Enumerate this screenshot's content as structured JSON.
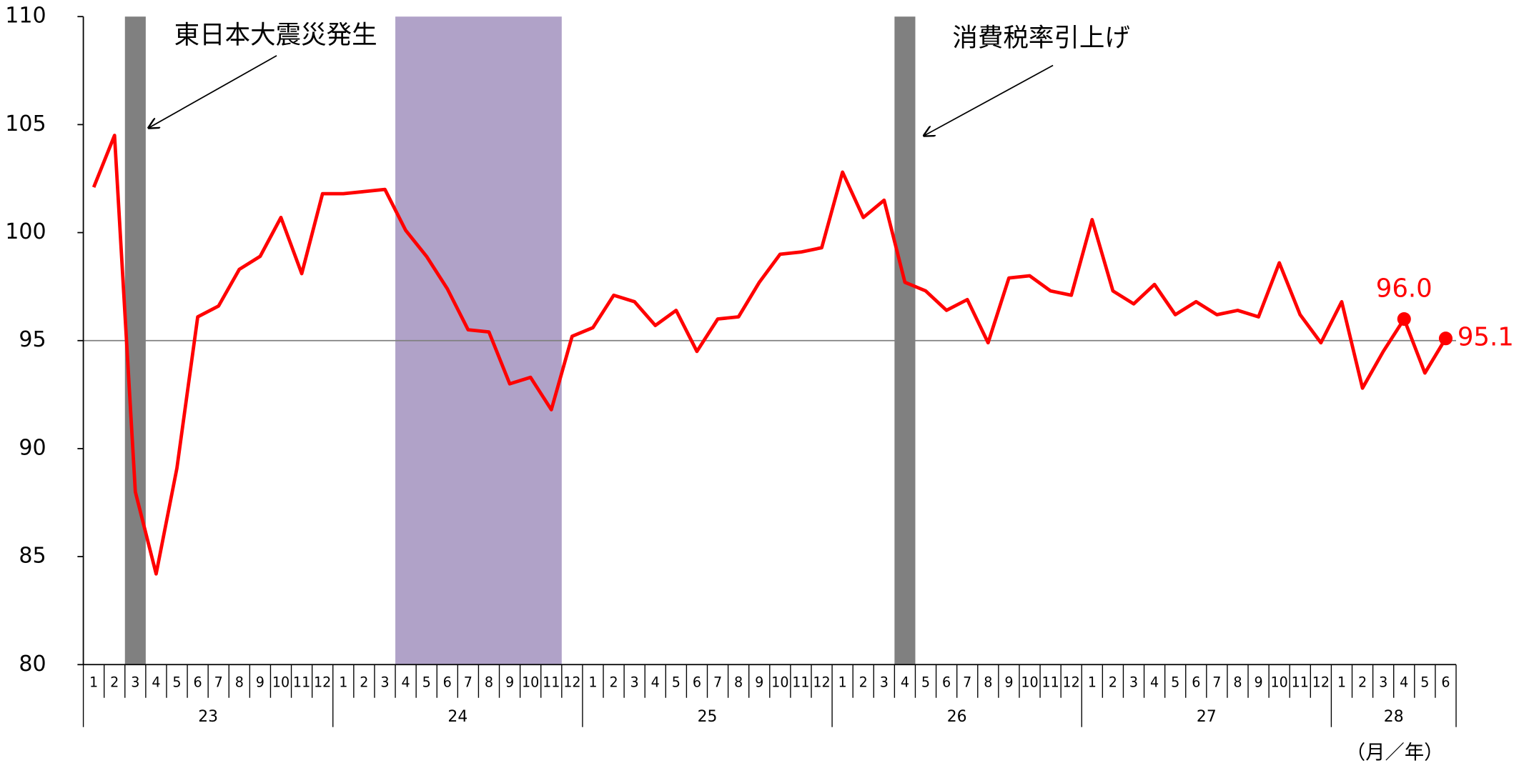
{
  "chart_data": {
    "type": "line",
    "categories": [
      "1",
      "2",
      "3",
      "4",
      "5",
      "6",
      "7",
      "8",
      "9",
      "10",
      "11",
      "12",
      "1",
      "2",
      "3",
      "4",
      "5",
      "6",
      "7",
      "8",
      "9",
      "10",
      "11",
      "12",
      "1",
      "2",
      "3",
      "4",
      "5",
      "6",
      "7",
      "8",
      "9",
      "10",
      "11",
      "12",
      "1",
      "2",
      "3",
      "4",
      "5",
      "6",
      "7",
      "8",
      "9",
      "10",
      "11",
      "12",
      "1",
      "2",
      "3",
      "4",
      "5",
      "6",
      "7",
      "8",
      "9",
      "10",
      "11",
      "12",
      "1",
      "2",
      "3",
      "4",
      "5",
      "6"
    ],
    "years": [
      "23",
      "24",
      "25",
      "26",
      "27",
      "28"
    ],
    "x_label": "（月／年）",
    "series": [
      {
        "color": "#ff0000",
        "values": [
          102.1,
          104.5,
          88.0,
          84.2,
          89.1,
          96.1,
          96.6,
          98.3,
          98.9,
          100.7,
          98.1,
          101.8,
          101.8,
          101.9,
          102.0,
          100.1,
          98.9,
          97.4,
          95.5,
          95.4,
          93.0,
          93.3,
          91.8,
          95.2,
          95.6,
          97.1,
          96.8,
          95.7,
          96.4,
          94.5,
          96.0,
          96.1,
          97.7,
          99.0,
          99.1,
          99.3,
          102.8,
          100.7,
          101.5,
          97.7,
          97.3,
          96.4,
          96.9,
          94.9,
          97.9,
          98.0,
          97.3,
          97.1,
          100.6,
          97.3,
          96.7,
          97.6,
          96.2,
          96.8,
          96.2,
          96.4,
          96.1,
          98.6,
          96.2,
          94.9,
          96.8,
          92.8,
          94.5,
          96.0,
          93.5,
          95.1
        ],
        "value_labels": [
          null,
          null,
          null,
          null,
          null,
          null,
          null,
          null,
          null,
          null,
          null,
          null,
          null,
          null,
          null,
          null,
          null,
          null,
          null,
          null,
          null,
          null,
          null,
          null,
          null,
          null,
          null,
          null,
          null,
          null,
          null,
          null,
          null,
          null,
          null,
          null,
          null,
          null,
          null,
          null,
          null,
          null,
          null,
          null,
          null,
          null,
          null,
          null,
          null,
          null,
          null,
          null,
          null,
          null,
          null,
          null,
          null,
          null,
          null,
          null,
          null,
          null,
          null,
          "96.0",
          null,
          "95.1"
        ]
      }
    ],
    "ylim": [
      80,
      110
    ],
    "yticks": [
      80,
      85,
      90,
      95,
      100,
      105,
      110
    ],
    "reference_line": 95,
    "shaded": [
      {
        "start_index": 2,
        "end_index": 2,
        "color": "#808080"
      },
      {
        "start_index": 15,
        "end_index": 22,
        "color": "#b0a2c8"
      },
      {
        "start_index": 39,
        "end_index": 39,
        "color": "#808080"
      }
    ],
    "annotations": [
      {
        "text": "東日本大震災発生"
      },
      {
        "text": "消費税率引上げ"
      }
    ]
  }
}
